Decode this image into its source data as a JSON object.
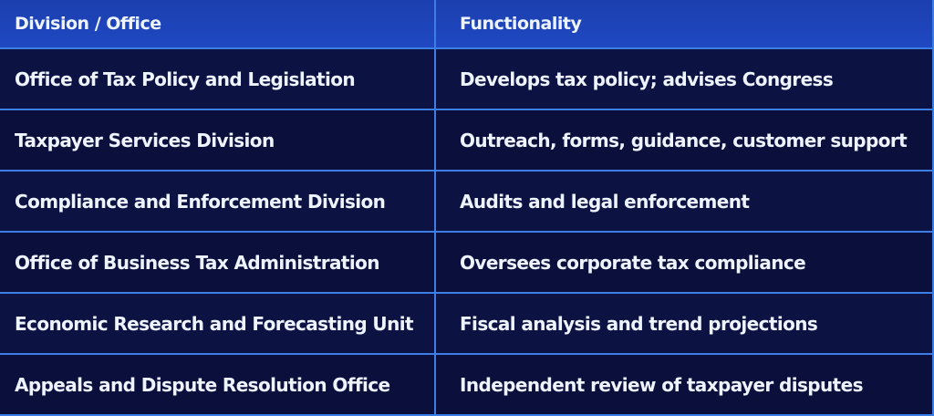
{
  "table": {
    "headers": [
      "Division / Office",
      "Functionality"
    ],
    "rows": [
      [
        "Office of Tax Policy and Legislation",
        "Develops tax policy; advises Congress"
      ],
      [
        "Taxpayer Services Division",
        "Outreach, forms, guidance, customer support"
      ],
      [
        "Compliance and Enforcement Division",
        "Audits and legal enforcement"
      ],
      [
        "Office of Business Tax Administration",
        "Oversees corporate tax compliance"
      ],
      [
        "Economic Research and Forecasting Unit",
        "Fiscal analysis and trend projections"
      ],
      [
        "Appeals and Dispute Resolution Office",
        "Independent review of taxpayer disputes"
      ]
    ]
  },
  "colors": {
    "header_bg": "#1f48c2",
    "row_bg": "#0b0f3c",
    "grid_line": "#3d7de6",
    "text": "#eef4ff"
  }
}
